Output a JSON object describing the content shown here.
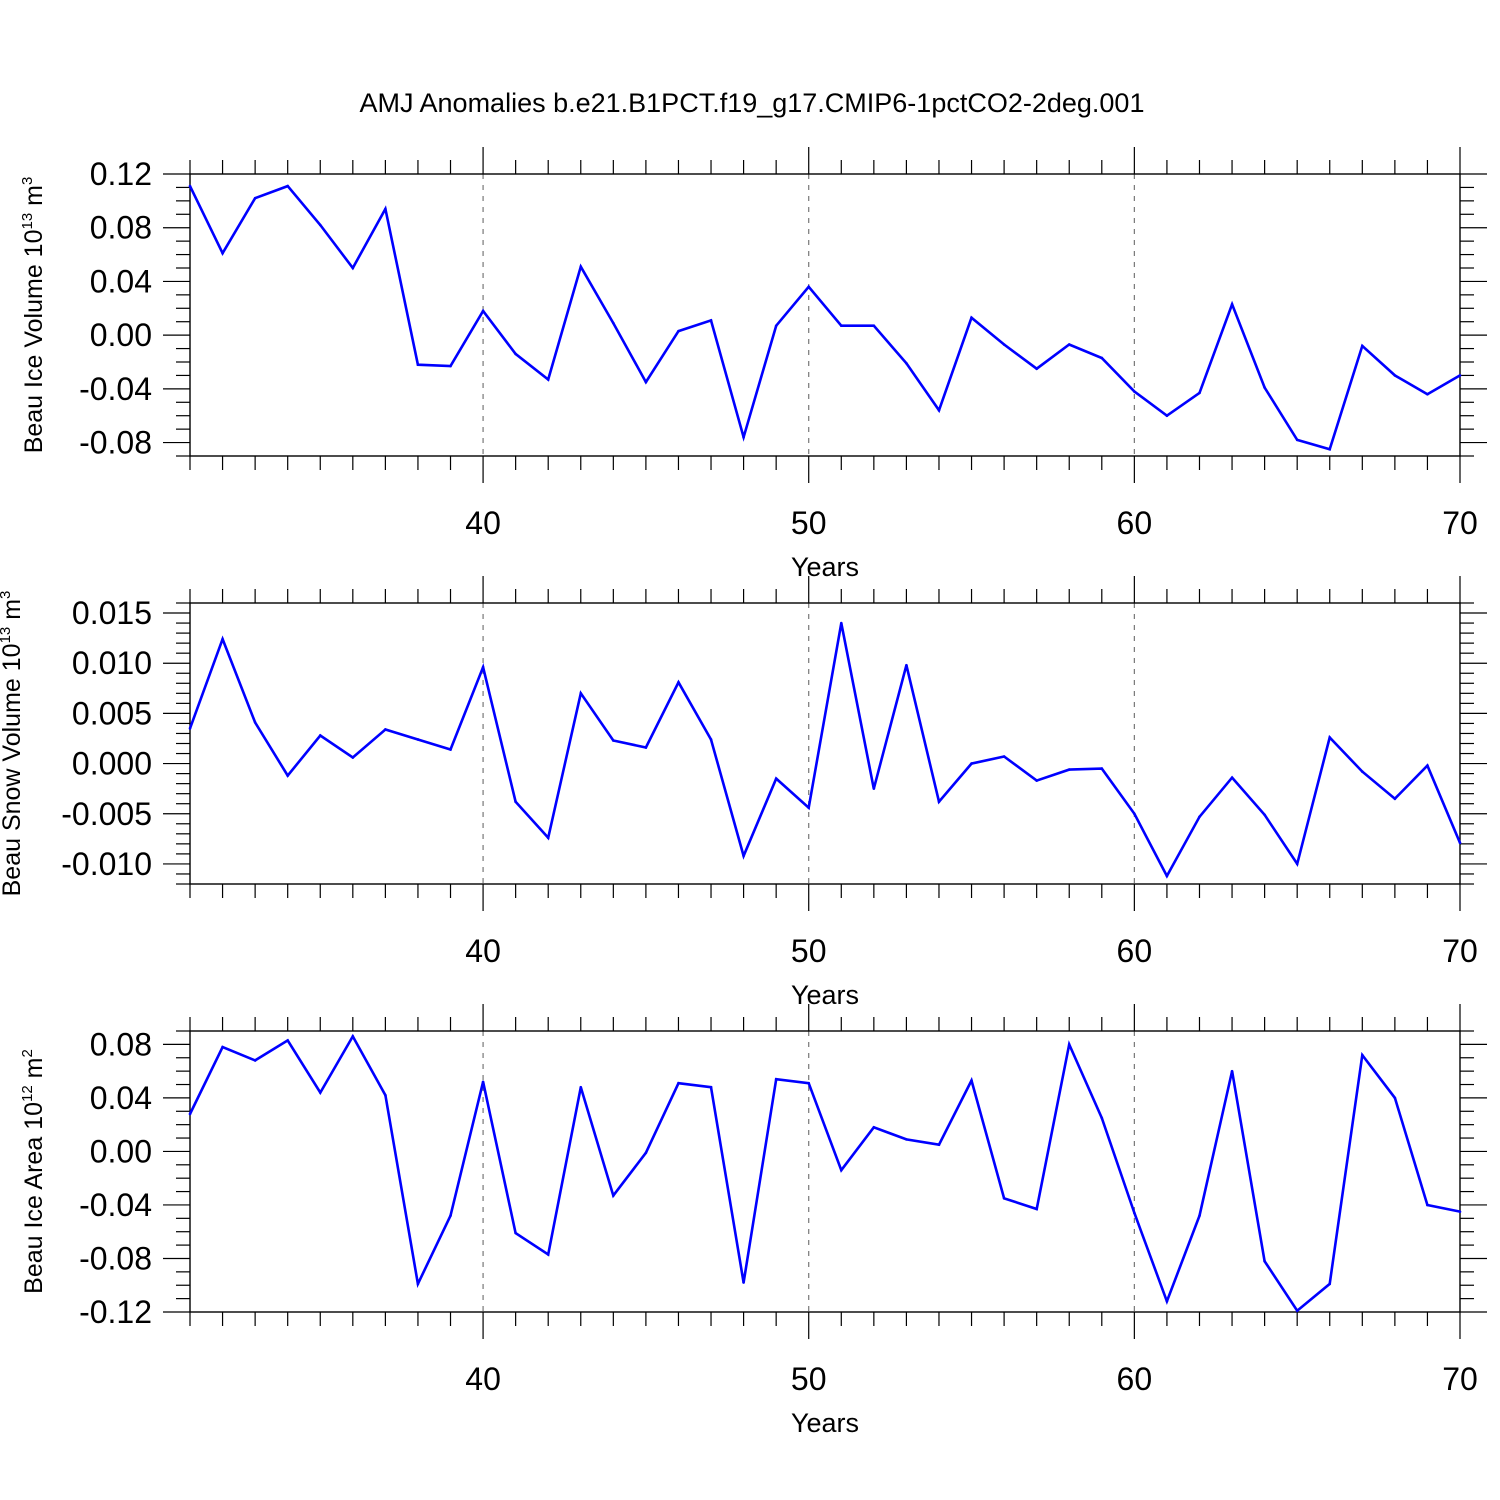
{
  "chart_data": {
    "title": "AMJ Anomalies b.e21.B1PCT.f19_g17.CMIP6-1pctCO2-2deg.001",
    "x": [
      31,
      32,
      33,
      34,
      35,
      36,
      37,
      38,
      39,
      40,
      41,
      42,
      43,
      44,
      45,
      46,
      47,
      48,
      49,
      50,
      51,
      52,
      53,
      54,
      55,
      56,
      57,
      58,
      59,
      60,
      61,
      62,
      63,
      64,
      65,
      66,
      67,
      68,
      69,
      70
    ],
    "xlim": [
      31,
      70
    ],
    "series_color": "#0000ff",
    "panels": [
      {
        "type": "line",
        "ylabel_main": "Beau Ice Volume 10",
        "ylabel_exp1": "13",
        "ylabel_mid": " m",
        "ylabel_exp2": "3",
        "xlabel": "Years",
        "ylim": [
          -0.09,
          0.12
        ],
        "yticks": [
          -0.08,
          -0.04,
          0.0,
          0.04,
          0.08,
          0.12
        ],
        "yticklabels": [
          "-0.08",
          "-0.04",
          "0.00",
          "0.04",
          "0.08",
          "0.12"
        ],
        "yminor": 0.01,
        "xticks": [
          40,
          50,
          60,
          70
        ],
        "xticklabels": [
          "40",
          "50",
          "60",
          "70"
        ],
        "values": [
          0.111,
          0.061,
          0.102,
          0.111,
          0.082,
          0.05,
          0.094,
          -0.022,
          -0.023,
          0.018,
          -0.014,
          -0.033,
          0.051,
          0.009,
          -0.035,
          0.003,
          0.011,
          -0.076,
          0.007,
          0.036,
          0.007,
          0.007,
          -0.021,
          -0.056,
          0.013,
          -0.007,
          -0.025,
          -0.007,
          -0.017,
          -0.042,
          -0.06,
          -0.043,
          0.023,
          -0.039,
          -0.078,
          -0.085,
          -0.008,
          -0.03,
          -0.044,
          -0.03
        ]
      },
      {
        "type": "line",
        "ylabel_main": "Beau Snow Volume 10",
        "ylabel_exp1": "13",
        "ylabel_mid": " m",
        "ylabel_exp2": "3",
        "xlabel": "Years",
        "ylim": [
          -0.012,
          0.016
        ],
        "yticks": [
          -0.01,
          -0.005,
          0.0,
          0.005,
          0.01,
          0.015
        ],
        "yticklabels": [
          "-0.010",
          "-0.005",
          "0.000",
          "0.005",
          "0.010",
          "0.015"
        ],
        "yminor": 0.001,
        "xticks": [
          40,
          50,
          60,
          70
        ],
        "xticklabels": [
          "40",
          "50",
          "60",
          "70"
        ],
        "values": [
          0.0035,
          0.0124,
          0.0041,
          -0.0012,
          0.0028,
          0.0006,
          0.0034,
          0.0024,
          0.0014,
          0.0096,
          -0.0038,
          -0.0074,
          0.007,
          0.0023,
          0.0016,
          0.0081,
          0.0024,
          -0.0092,
          -0.0015,
          -0.0044,
          0.014,
          -0.0025,
          0.0098,
          -0.0038,
          0.0,
          0.0007,
          -0.0017,
          -0.0006,
          -0.0005,
          -0.005,
          -0.0112,
          -0.0053,
          -0.0014,
          -0.0051,
          -0.01,
          0.0026,
          -0.0008,
          -0.0035,
          -0.0002,
          -0.0079
        ]
      },
      {
        "type": "line",
        "ylabel_main": "Beau Ice Area 10",
        "ylabel_exp1": "12",
        "ylabel_mid": " m",
        "ylabel_exp2": "2",
        "xlabel": "Years",
        "ylim": [
          -0.12,
          0.09
        ],
        "yticks": [
          -0.12,
          -0.08,
          -0.04,
          0.0,
          0.04,
          0.08
        ],
        "yticklabels": [
          "-0.12",
          "-0.08",
          "-0.04",
          "0.00",
          "0.04",
          "0.08"
        ],
        "yminor": 0.01,
        "xticks": [
          40,
          50,
          60,
          70
        ],
        "xticklabels": [
          "40",
          "50",
          "60",
          "70"
        ],
        "values": [
          0.028,
          0.078,
          0.068,
          0.083,
          0.044,
          0.086,
          0.042,
          -0.099,
          -0.048,
          0.052,
          -0.061,
          -0.077,
          0.048,
          -0.033,
          -0.001,
          0.051,
          0.048,
          -0.098,
          0.054,
          0.051,
          -0.014,
          0.018,
          0.009,
          0.005,
          0.053,
          -0.035,
          -0.043,
          0.08,
          0.025,
          -0.046,
          -0.112,
          -0.048,
          0.06,
          -0.082,
          -0.119,
          -0.099,
          0.072,
          0.04,
          -0.04,
          -0.045
        ]
      }
    ]
  }
}
